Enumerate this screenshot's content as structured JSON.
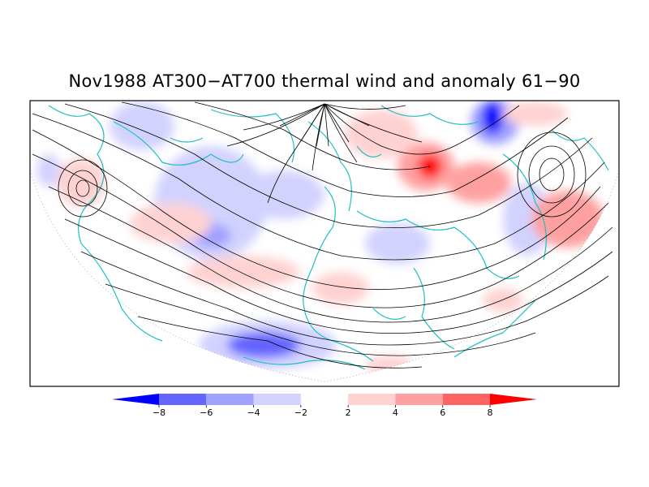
{
  "title": "Nov1988 AT300−AT700 thermal wind and anomaly 61−90",
  "colorbar": {
    "tick_labels": [
      "−8",
      "−6",
      "−4",
      "−2",
      "2",
      "4",
      "6",
      "8"
    ],
    "colors": [
      "#0000ff",
      "#6464ff",
      "#a0a0ff",
      "#d2d2ff",
      "#ffffff",
      "#ffd2d2",
      "#ffa0a0",
      "#ff6464",
      "#ff0000"
    ]
  },
  "map": {
    "projection": "north-polar-stereographic",
    "coastline_color": "#20c0c0",
    "streamline_color": "#000000"
  }
}
